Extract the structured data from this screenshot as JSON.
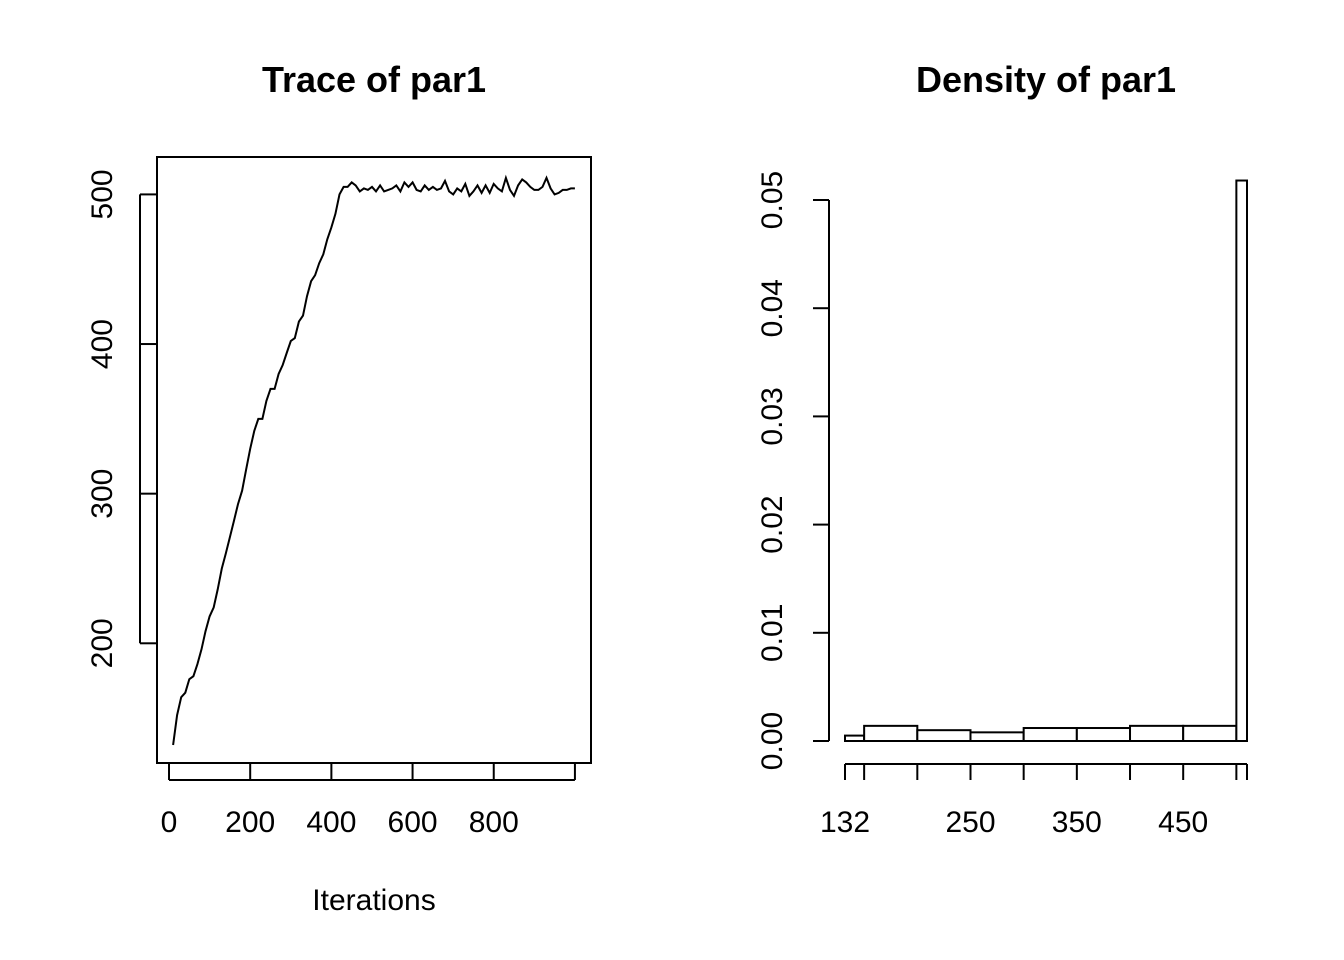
{
  "chart_data": [
    {
      "type": "line",
      "title": "Trace of par1",
      "xlabel": "Iterations",
      "ylabel": "",
      "xlim": [
        10,
        1000
      ],
      "ylim": [
        135,
        510
      ],
      "x_ticks": [
        0,
        200,
        400,
        600,
        800,
        1000
      ],
      "x_tick_labels": [
        "0",
        "200",
        "400",
        "600",
        "800",
        ""
      ],
      "y_ticks": [
        200,
        300,
        400,
        500
      ],
      "y_tick_labels": [
        "200",
        "300",
        "400",
        "500"
      ],
      "series": [
        {
          "x": [
            10,
            20,
            30,
            40,
            50,
            60,
            70,
            80,
            90,
            100,
            110,
            120,
            130,
            140,
            150,
            160,
            170,
            180,
            190,
            200,
            210,
            220,
            230,
            240,
            250,
            260,
            270,
            280,
            290,
            300,
            310,
            320,
            330,
            340,
            350,
            360,
            370,
            380,
            390,
            400,
            410,
            420,
            430,
            440,
            450,
            460,
            470,
            480,
            490,
            500,
            510,
            520,
            530,
            540,
            550,
            560,
            570,
            580,
            590,
            600,
            610,
            620,
            630,
            640,
            650,
            660,
            670,
            680,
            690,
            700,
            710,
            720,
            730,
            740,
            750,
            760,
            770,
            780,
            790,
            800,
            810,
            820,
            830,
            840,
            850,
            860,
            870,
            880,
            890,
            900,
            910,
            920,
            930,
            940,
            950,
            960,
            970,
            980,
            990,
            1000
          ],
          "y": [
            132,
            152,
            164,
            167,
            176,
            178,
            186,
            196,
            208,
            218,
            224,
            236,
            250,
            260,
            271,
            282,
            293,
            302,
            316,
            330,
            342,
            350,
            350,
            362,
            370,
            370,
            380,
            386,
            394,
            402,
            404,
            415,
            419,
            432,
            442,
            446,
            454,
            460,
            470,
            478,
            487,
            500,
            505,
            505,
            508,
            506,
            502,
            504,
            503,
            505,
            502,
            506,
            502,
            503,
            504,
            506,
            502,
            508,
            505,
            508,
            503,
            502,
            506,
            503,
            505,
            503,
            504,
            509,
            502,
            500,
            504,
            502,
            507,
            499,
            502,
            506,
            501,
            506,
            501,
            507,
            504,
            502,
            511,
            503,
            499,
            506,
            510,
            508,
            505,
            503,
            503,
            505,
            511,
            504,
            500,
            501,
            503,
            503,
            504,
            504
          ]
        }
      ],
      "grid": false
    },
    {
      "type": "bar",
      "title": "Density of par1",
      "xlabel": "",
      "ylabel": "",
      "xlim": [
        132,
        510
      ],
      "ylim": [
        0,
        0.05
      ],
      "x_ticks": [
        132,
        150,
        200,
        250,
        300,
        350,
        400,
        450,
        500,
        510
      ],
      "x_tick_labels": [
        "132",
        "",
        "",
        "250",
        "",
        "350",
        "",
        "450",
        "",
        ""
      ],
      "y_ticks": [
        0.0,
        0.01,
        0.02,
        0.03,
        0.04,
        0.05
      ],
      "y_tick_labels": [
        "0.00",
        "0.01",
        "0.02",
        "0.03",
        "0.04",
        "0.05"
      ],
      "bins": [
        [
          132,
          150
        ],
        [
          150,
          200
        ],
        [
          200,
          250
        ],
        [
          250,
          300
        ],
        [
          300,
          350
        ],
        [
          350,
          400
        ],
        [
          400,
          450
        ],
        [
          450,
          500
        ],
        [
          500,
          510
        ]
      ],
      "values": [
        0.0005,
        0.0014,
        0.001,
        0.0008,
        0.0012,
        0.0012,
        0.0014,
        0.0014,
        0.0518
      ],
      "grid": false
    }
  ]
}
